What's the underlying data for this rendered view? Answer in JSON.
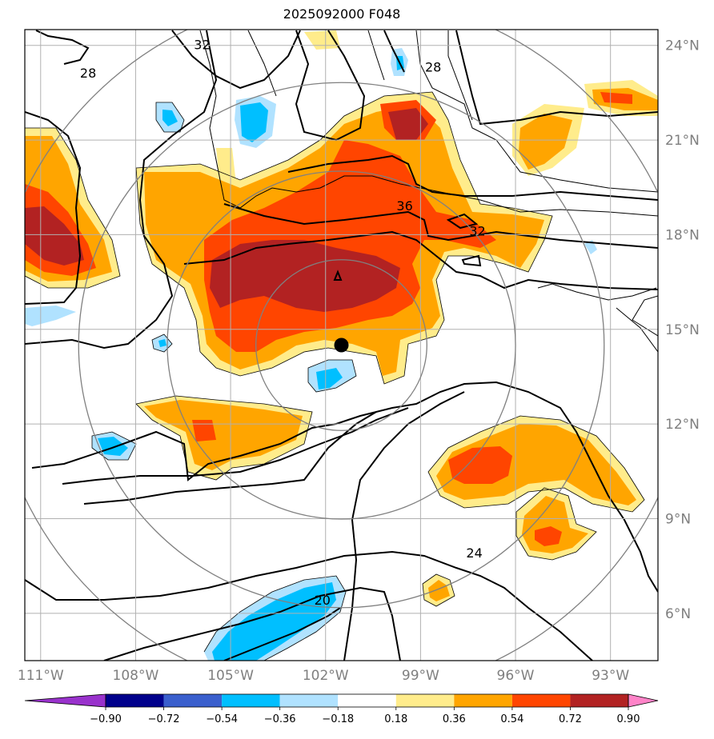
{
  "title": "2025092000 F048",
  "map": {
    "lon_range": [
      -111.5,
      -91.5
    ],
    "lat_range": [
      4.5,
      24.5
    ],
    "lon_ticks": [
      {
        "value": -111,
        "label": "111°W"
      },
      {
        "value": -108,
        "label": "108°W"
      },
      {
        "value": -105,
        "label": "105°W"
      },
      {
        "value": -102,
        "label": "102°W"
      },
      {
        "value": -99,
        "label": "99°W"
      },
      {
        "value": -96,
        "label": "96°W"
      },
      {
        "value": -93,
        "label": "93°W"
      }
    ],
    "lat_ticks": [
      {
        "value": 6,
        "label": "6°N"
      },
      {
        "value": 9,
        "label": "9°N"
      },
      {
        "value": 12,
        "label": "12°N"
      },
      {
        "value": 15,
        "label": "15°N"
      },
      {
        "value": 18,
        "label": "18°N"
      },
      {
        "value": 21,
        "label": "21°N"
      },
      {
        "value": 24,
        "label": "24°N"
      }
    ],
    "gridlines": true,
    "center_marker": {
      "lon": -101.5,
      "lat": 14.5
    },
    "range_rings_deg": [
      2.7,
      5.5,
      8.3,
      11.1
    ],
    "contour_labels": [
      {
        "text": "32",
        "lon": -105.9,
        "lat": 24.0
      },
      {
        "text": "28",
        "lon": -109.5,
        "lat": 23.1
      },
      {
        "text": "28",
        "lon": -98.6,
        "lat": 23.3
      },
      {
        "text": "36",
        "lon": -99.5,
        "lat": 18.9
      },
      {
        "text": "32",
        "lon": -97.2,
        "lat": 18.1
      },
      {
        "text": "24",
        "lon": -97.3,
        "lat": 7.9
      },
      {
        "text": "20",
        "lon": -102.1,
        "lat": 6.4
      }
    ]
  },
  "colorbar": {
    "tick_labels": [
      "−0.90",
      "−0.72",
      "−0.54",
      "−0.36",
      "−0.18",
      "0.18",
      "0.36",
      "0.54",
      "0.72",
      "0.90"
    ],
    "colors": [
      "#9932cc",
      "#00008b",
      "#3a5fcd",
      "#00bfff",
      "#b0e2ff",
      "#ffffff",
      "#ffec8b",
      "#ffa500",
      "#ff4500",
      "#b22222",
      "#ff83c8"
    ]
  },
  "fill_colors": {
    "pos1": "#ffec8b",
    "pos2": "#ffa500",
    "pos3": "#ff4500",
    "pos4": "#b22222",
    "neg1": "#b0e2ff",
    "neg2": "#00bfff",
    "neg3": "#3a5fcd",
    "neg4": "#9932cc"
  }
}
